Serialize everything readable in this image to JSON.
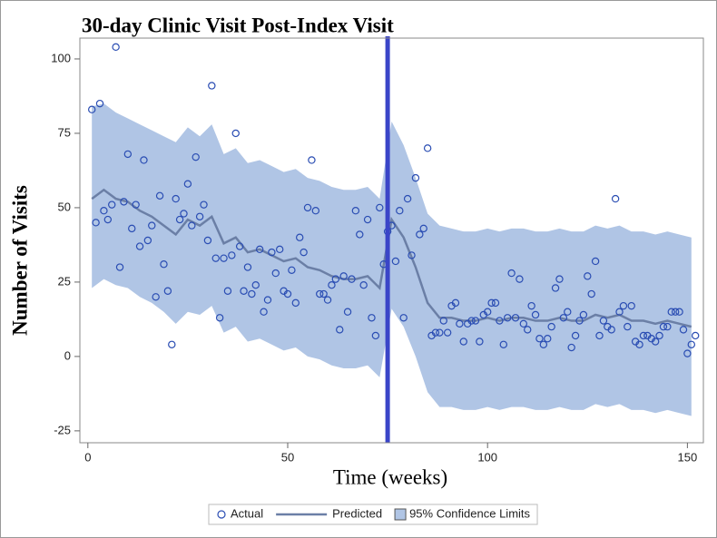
{
  "chart_data": {
    "type": "line",
    "title": "30-day Clinic Visit Post-Index Visit",
    "x_label": "Time (weeks)",
    "y_label": "Number of Visits",
    "xlim": [
      -2,
      154
    ],
    "xticks": [
      0,
      50,
      100,
      150
    ],
    "ylim": [
      -29,
      107
    ],
    "yticks": [
      -25,
      0,
      25,
      50,
      75,
      100
    ],
    "grid": false,
    "legend_position": "bottom",
    "reference_x": 75,
    "reference_color": "#3a45c8",
    "series": [
      {
        "name": "Actual",
        "type": "scatter",
        "color": "#2a4db3",
        "x": [
          1,
          2,
          3,
          4,
          5,
          6,
          7,
          8,
          9,
          10,
          11,
          12,
          13,
          14,
          15,
          16,
          17,
          18,
          19,
          20,
          21,
          22,
          23,
          24,
          25,
          26,
          27,
          28,
          29,
          30,
          31,
          32,
          33,
          34,
          35,
          36,
          37,
          38,
          39,
          40,
          41,
          42,
          43,
          44,
          45,
          46,
          47,
          48,
          49,
          50,
          51,
          52,
          53,
          54,
          55,
          56,
          57,
          58,
          59,
          60,
          61,
          62,
          63,
          64,
          65,
          66,
          67,
          68,
          69,
          70,
          71,
          72,
          73,
          74,
          75,
          76,
          77,
          78,
          79,
          80,
          81,
          82,
          83,
          84,
          85,
          86,
          87,
          88,
          89,
          90,
          91,
          92,
          93,
          94,
          95,
          96,
          97,
          98,
          99,
          100,
          101,
          102,
          103,
          104,
          105,
          106,
          107,
          108,
          109,
          110,
          111,
          112,
          113,
          114,
          115,
          116,
          117,
          118,
          119,
          120,
          121,
          122,
          123,
          124,
          125,
          126,
          127,
          128,
          129,
          130,
          131,
          132,
          133,
          134,
          135,
          136,
          137,
          138,
          139,
          140,
          141,
          142,
          143,
          144,
          145,
          146,
          147,
          148,
          149,
          150,
          151,
          152
        ],
        "values": [
          83,
          45,
          85,
          49,
          46,
          51,
          104,
          30,
          52,
          68,
          43,
          51,
          37,
          66,
          39,
          44,
          20,
          54,
          31,
          22,
          4,
          53,
          46,
          48,
          58,
          44,
          67,
          47,
          51,
          39,
          91,
          33,
          13,
          33,
          22,
          34,
          75,
          37,
          22,
          30,
          21,
          24,
          36,
          15,
          19,
          35,
          28,
          36,
          22,
          21,
          29,
          18,
          40,
          35,
          50,
          66,
          49,
          21,
          21,
          19,
          24,
          26,
          9,
          27,
          15,
          26,
          49,
          41,
          24,
          46,
          13,
          7,
          50,
          31,
          42,
          44,
          32,
          49,
          13,
          53,
          34,
          60,
          41,
          43,
          70,
          7,
          8,
          8,
          12,
          8,
          17,
          18,
          11,
          5,
          11,
          12,
          12,
          5,
          14,
          15,
          18,
          18,
          12,
          4,
          13,
          28,
          13,
          26,
          11,
          9,
          17,
          14,
          6,
          4,
          6,
          10,
          23,
          26,
          13,
          15,
          3,
          7,
          12,
          14,
          27,
          21,
          32,
          7,
          12,
          10,
          9,
          53,
          15,
          17,
          10,
          17,
          5,
          4,
          7,
          7,
          6,
          5,
          7,
          10,
          10,
          15,
          15,
          15,
          9,
          1,
          4,
          7
        ]
      },
      {
        "name": "Predicted",
        "type": "line",
        "color": "#6b7fa6",
        "x": [
          1,
          4,
          7,
          10,
          13,
          16,
          19,
          22,
          25,
          28,
          31,
          34,
          37,
          40,
          43,
          46,
          49,
          52,
          55,
          58,
          61,
          64,
          67,
          70,
          73,
          76,
          79,
          82,
          85,
          88,
          91,
          94,
          97,
          100,
          103,
          106,
          109,
          112,
          115,
          118,
          121,
          124,
          127,
          130,
          133,
          136,
          139,
          142,
          145,
          148,
          151
        ],
        "values": [
          53,
          56,
          53,
          52,
          49,
          47,
          44,
          41,
          46,
          44,
          47,
          38,
          40,
          35,
          36,
          34,
          32,
          33,
          30,
          29,
          27,
          26,
          26,
          27,
          23,
          46,
          40,
          30,
          18,
          13,
          13,
          12,
          12,
          13,
          12,
          13,
          13,
          12,
          12,
          13,
          12,
          12,
          14,
          13,
          14,
          12,
          12,
          11,
          12,
          11,
          10
        ]
      },
      {
        "name": "95% Confidence Limits",
        "type": "band",
        "color": "#b0c5e5",
        "x": [
          1,
          4,
          7,
          10,
          13,
          16,
          19,
          22,
          25,
          28,
          31,
          34,
          37,
          40,
          43,
          46,
          49,
          52,
          55,
          58,
          61,
          64,
          67,
          70,
          73,
          76,
          79,
          82,
          85,
          88,
          91,
          94,
          97,
          100,
          103,
          106,
          109,
          112,
          115,
          118,
          121,
          124,
          127,
          130,
          133,
          136,
          139,
          142,
          145,
          148,
          151
        ],
        "upper": [
          84,
          85,
          82,
          80,
          78,
          76,
          74,
          72,
          77,
          74,
          78,
          68,
          70,
          65,
          66,
          64,
          62,
          63,
          60,
          59,
          57,
          56,
          56,
          57,
          53,
          79,
          71,
          60,
          48,
          44,
          43,
          42,
          42,
          43,
          42,
          43,
          43,
          42,
          42,
          43,
          42,
          42,
          44,
          43,
          44,
          42,
          42,
          41,
          42,
          41,
          40
        ],
        "lower": [
          23,
          26,
          24,
          23,
          20,
          18,
          15,
          11,
          15,
          14,
          17,
          8,
          10,
          5,
          6,
          4,
          2,
          3,
          0,
          -1,
          -3,
          -4,
          -4,
          -3,
          -7,
          16,
          10,
          0,
          -12,
          -17,
          -17,
          -18,
          -18,
          -17,
          -18,
          -17,
          -17,
          -18,
          -18,
          -17,
          -18,
          -18,
          -16,
          -17,
          -16,
          -18,
          -18,
          -19,
          -18,
          -19,
          -20
        ]
      }
    ]
  }
}
